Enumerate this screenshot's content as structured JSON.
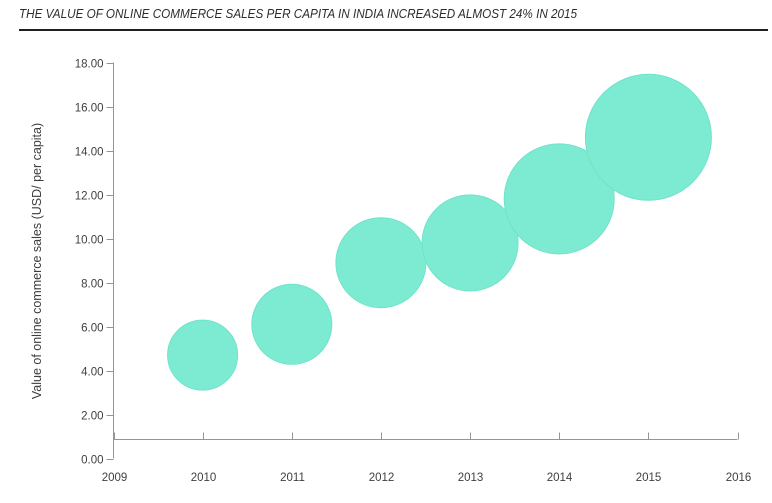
{
  "header": {
    "title": "THE VALUE OF ONLINE COMMERCE SALES PER CAPITA IN INDIA INCREASED ALMOST 24% IN 2015"
  },
  "chart_data": {
    "type": "scatter",
    "subtype": "bubble",
    "title": "THE VALUE OF ONLINE COMMERCE SALES PER CAPITA IN INDIA INCREASED ALMOST 24% IN 2015",
    "xlabel": "",
    "ylabel": "Value of online commerce sales (USD/ per capita)",
    "xlim": [
      2009,
      2016
    ],
    "ylim": [
      0,
      18
    ],
    "x_ticks": [
      2009,
      2010,
      2011,
      2012,
      2013,
      2014,
      2015,
      2016
    ],
    "x_tick_labels": [
      "2009",
      "2010",
      "2011",
      "2012",
      "2013",
      "2014",
      "2015",
      "2016"
    ],
    "y_ticks": [
      0,
      2,
      4,
      6,
      8,
      10,
      12,
      14,
      16,
      18
    ],
    "y_tick_labels": [
      "0.00",
      "2.00",
      "4.00",
      "6.00",
      "8.00",
      "10.00",
      "12.00",
      "14.00",
      "16.00",
      "18.00"
    ],
    "grid": false,
    "legend": "none",
    "points": [
      {
        "year": 2010,
        "value": 4.7,
        "radius_px": 35
      },
      {
        "year": 2011,
        "value": 6.1,
        "radius_px": 40
      },
      {
        "year": 2012,
        "value": 8.9,
        "radius_px": 45
      },
      {
        "year": 2013,
        "value": 9.8,
        "radius_px": 48
      },
      {
        "year": 2014,
        "value": 11.8,
        "radius_px": 55
      },
      {
        "year": 2015,
        "value": 14.6,
        "radius_px": 63
      }
    ],
    "colors": {
      "bubble_fill": "#7DEBD2",
      "bubble_edge": "#6FE3C8",
      "axis_line": "#959595",
      "tick_label_text": "#3f3f3f",
      "title_text": "#2d2d2d"
    }
  }
}
